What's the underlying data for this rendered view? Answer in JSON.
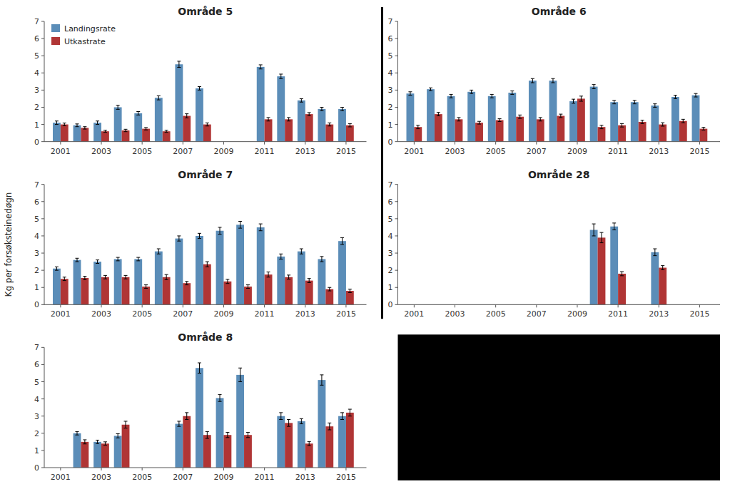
{
  "chart_data": [
    {
      "type": "bar",
      "title": "Område 5",
      "x": [
        2001,
        2002,
        2003,
        2004,
        2005,
        2006,
        2007,
        2008,
        2011,
        2012,
        2013,
        2014,
        2015
      ],
      "series": [
        {
          "name": "Landingsrate",
          "color": "#5B8DB8",
          "values": [
            1.1,
            0.95,
            1.1,
            2.0,
            1.65,
            2.55,
            4.5,
            3.1,
            4.35,
            3.8,
            2.4,
            1.9,
            1.9
          ],
          "errors": [
            0.1,
            0.08,
            0.1,
            0.12,
            0.1,
            0.12,
            0.18,
            0.1,
            0.12,
            0.13,
            0.1,
            0.1,
            0.1
          ]
        },
        {
          "name": "Utkastrate",
          "color": "#B03535",
          "values": [
            1.0,
            0.8,
            0.6,
            0.65,
            0.75,
            0.6,
            1.5,
            1.0,
            1.3,
            1.3,
            1.6,
            1.0,
            0.95
          ],
          "errors": [
            0.08,
            0.07,
            0.06,
            0.07,
            0.07,
            0.06,
            0.12,
            0.09,
            0.1,
            0.1,
            0.09,
            0.09,
            0.09
          ]
        }
      ],
      "xlim": [
        2000.2,
        2016.0
      ],
      "xticks": [
        2001,
        2003,
        2005,
        2007,
        2009,
        2011,
        2013,
        2015
      ],
      "ylim": [
        0,
        7
      ],
      "yticks": [
        0,
        1,
        2,
        3,
        4,
        5,
        6,
        7
      ],
      "legend": "upper left"
    },
    {
      "type": "bar",
      "title": "Område 6",
      "x": [
        2001,
        2002,
        2003,
        2004,
        2005,
        2006,
        2007,
        2008,
        2009,
        2010,
        2011,
        2012,
        2013,
        2014,
        2015
      ],
      "series": [
        {
          "color": "#5B8DB8",
          "values": [
            2.8,
            3.05,
            2.65,
            2.9,
            2.65,
            2.85,
            3.55,
            3.55,
            2.35,
            3.2,
            2.3,
            2.3,
            2.1,
            2.6,
            2.7
          ],
          "errors": [
            0.1,
            0.08,
            0.1,
            0.1,
            0.1,
            0.1,
            0.12,
            0.12,
            0.12,
            0.12,
            0.1,
            0.1,
            0.1,
            0.1,
            0.1
          ]
        },
        {
          "color": "#B03535",
          "values": [
            0.85,
            1.6,
            1.3,
            1.1,
            1.25,
            1.45,
            1.3,
            1.5,
            2.5,
            0.85,
            0.95,
            1.15,
            1.0,
            1.2,
            0.75
          ],
          "errors": [
            0.1,
            0.1,
            0.1,
            0.08,
            0.08,
            0.1,
            0.1,
            0.1,
            0.15,
            0.1,
            0.1,
            0.1,
            0.1,
            0.1,
            0.08
          ]
        }
      ],
      "xlim": [
        2000.2,
        2016.0
      ],
      "xticks": [
        2001,
        2003,
        2005,
        2007,
        2009,
        2011,
        2013,
        2015
      ],
      "ylim": [
        0,
        7
      ],
      "yticks": [
        0,
        1,
        2,
        3,
        4,
        5,
        6,
        7
      ]
    },
    {
      "type": "bar",
      "title": "Område 7",
      "y_label": "Kg per forsøksteinedøgn",
      "x": [
        2001,
        2002,
        2003,
        2004,
        2005,
        2006,
        2007,
        2008,
        2009,
        2010,
        2011,
        2012,
        2013,
        2014,
        2015
      ],
      "series": [
        {
          "color": "#5B8DB8",
          "values": [
            2.1,
            2.6,
            2.5,
            2.65,
            2.65,
            3.1,
            3.85,
            4.0,
            4.3,
            4.65,
            4.5,
            2.8,
            3.1,
            2.65,
            3.7
          ],
          "errors": [
            0.1,
            0.1,
            0.1,
            0.1,
            0.1,
            0.15,
            0.15,
            0.15,
            0.2,
            0.2,
            0.2,
            0.15,
            0.15,
            0.15,
            0.2
          ]
        },
        {
          "color": "#B03535",
          "values": [
            1.5,
            1.55,
            1.6,
            1.6,
            1.05,
            1.6,
            1.25,
            2.35,
            1.35,
            1.05,
            1.75,
            1.6,
            1.4,
            0.9,
            0.8
          ],
          "errors": [
            0.1,
            0.1,
            0.1,
            0.1,
            0.1,
            0.15,
            0.1,
            0.15,
            0.12,
            0.1,
            0.15,
            0.12,
            0.12,
            0.1,
            0.1
          ]
        }
      ],
      "xlim": [
        2000.2,
        2016.0
      ],
      "xticks": [
        2001,
        2003,
        2005,
        2007,
        2009,
        2011,
        2013,
        2015
      ],
      "ylim": [
        0,
        7
      ],
      "yticks": [
        0,
        1,
        2,
        3,
        4,
        5,
        6,
        7
      ]
    },
    {
      "type": "bar",
      "title": "Område 28",
      "x": [
        2010,
        2011,
        2013,
        2014
      ],
      "series": [
        {
          "color": "#5B8DB8",
          "values": [
            4.35,
            4.55,
            3.05,
            0.0
          ],
          "errors": [
            0.35,
            0.2,
            0.2,
            0.0
          ]
        },
        {
          "color": "#B03535",
          "values": [
            3.9,
            1.8,
            2.15,
            0.0
          ],
          "errors": [
            0.3,
            0.12,
            0.12,
            0.0
          ]
        }
      ],
      "xlim": [
        2000.2,
        2016.0
      ],
      "xticks": [
        2001,
        2003,
        2005,
        2007,
        2009,
        2011,
        2013,
        2015
      ],
      "ylim": [
        0,
        7
      ],
      "yticks": [
        0,
        1,
        2,
        3,
        4,
        5,
        6,
        7
      ]
    },
    {
      "type": "bar",
      "title": "Område 8",
      "x": [
        2002,
        2003,
        2004,
        2005,
        2007,
        2008,
        2009,
        2010,
        2012,
        2013,
        2014,
        2015
      ],
      "series": [
        {
          "color": "#5B8DB8",
          "values": [
            2.0,
            1.5,
            1.85,
            0.0,
            2.55,
            5.8,
            4.05,
            5.4,
            3.0,
            2.7,
            5.1,
            3.0
          ],
          "errors": [
            0.1,
            0.1,
            0.12,
            0.0,
            0.15,
            0.3,
            0.2,
            0.4,
            0.2,
            0.15,
            0.3,
            0.2
          ]
        },
        {
          "color": "#B03535",
          "values": [
            1.5,
            1.4,
            2.5,
            0.0,
            3.0,
            1.9,
            1.9,
            1.9,
            2.6,
            1.4,
            2.4,
            3.2
          ],
          "errors": [
            0.12,
            0.1,
            0.2,
            0.0,
            0.2,
            0.2,
            0.15,
            0.15,
            0.2,
            0.12,
            0.2,
            0.2
          ]
        }
      ],
      "xlim": [
        2000.2,
        2016.0
      ],
      "xticks": [
        2001,
        2003,
        2005,
        2007,
        2009,
        2011,
        2013,
        2015
      ],
      "ylim": [
        0,
        7
      ],
      "yticks": [
        0,
        1,
        2,
        3,
        4,
        5,
        6,
        7
      ]
    }
  ]
}
